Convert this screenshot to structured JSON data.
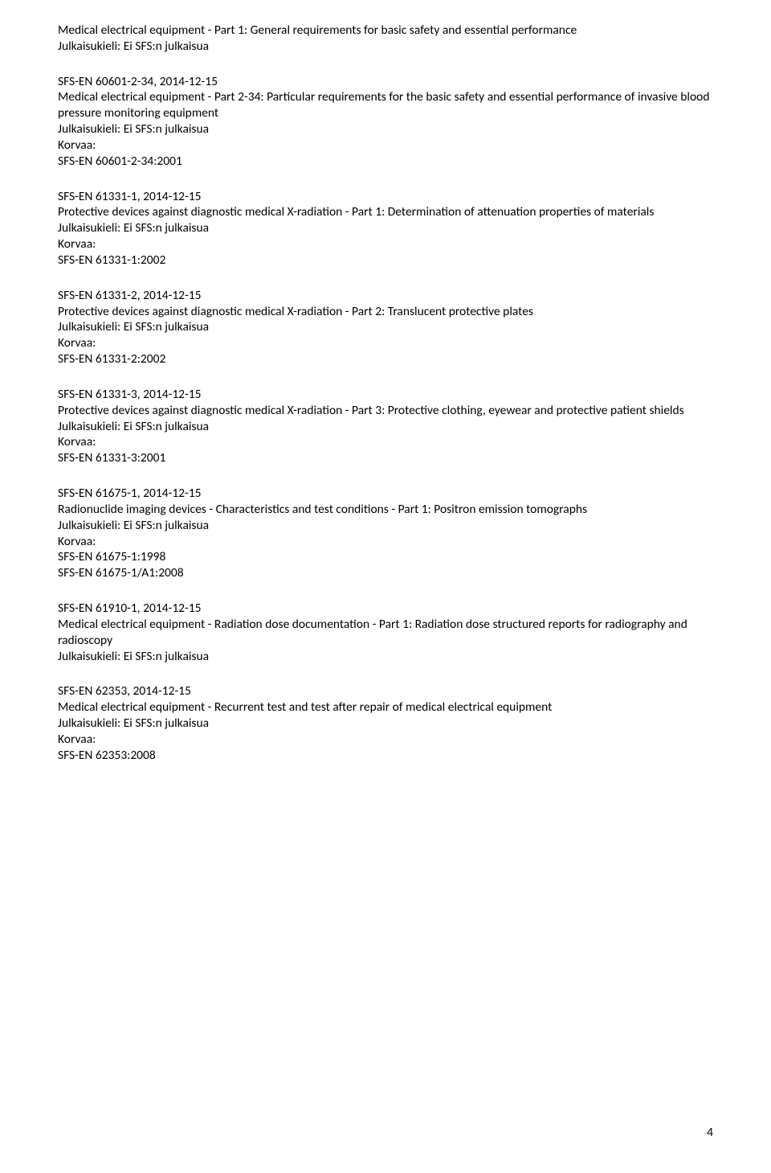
{
  "lang_line": "Julkaisukieli: Ei SFS:n julkaisua",
  "replaces_label": "Korvaa:",
  "page_number": "4",
  "entries": [
    {
      "desc": "Medical electrical equipment - Part 1: General requirements for basic safety and essential performance",
      "show_lang": true
    },
    {
      "header": "SFS-EN 60601-2-34, 2014-12-15",
      "desc": "Medical electrical equipment - Part 2-34: Particular requirements for the basic safety and essential performance of invasive blood pressure monitoring equipment",
      "show_lang": true,
      "show_replaces": true,
      "replaces": [
        "SFS-EN 60601-2-34:2001"
      ]
    },
    {
      "header": "SFS-EN 61331-1, 2014-12-15",
      "desc": "Protective devices against diagnostic medical X-radiation - Part 1: Determination of attenuation properties of materials",
      "show_lang": true,
      "show_replaces": true,
      "replaces": [
        "SFS-EN 61331-1:2002"
      ]
    },
    {
      "header": "SFS-EN 61331-2, 2014-12-15",
      "desc": "Protective devices against diagnostic medical X-radiation - Part 2: Translucent protective plates",
      "show_lang": true,
      "show_replaces": true,
      "replaces": [
        "SFS-EN 61331-2:2002"
      ]
    },
    {
      "header": "SFS-EN 61331-3, 2014-12-15",
      "desc": "Protective devices against diagnostic medical X-radiation - Part 3: Protective clothing, eyewear and protective patient shields",
      "show_lang": true,
      "show_replaces": true,
      "replaces": [
        "SFS-EN 61331-3:2001"
      ]
    },
    {
      "header": "SFS-EN 61675-1, 2014-12-15",
      "desc": "Radionuclide imaging devices - Characteristics and test conditions - Part 1: Positron emission tomographs",
      "show_lang": true,
      "show_replaces": true,
      "replaces": [
        "SFS-EN 61675-1:1998",
        "SFS-EN 61675-1/A1:2008"
      ]
    },
    {
      "header": "SFS-EN 61910-1, 2014-12-15",
      "desc": "Medical electrical equipment - Radiation dose documentation - Part 1: Radiation dose structured reports for radiography and radioscopy",
      "show_lang": true
    },
    {
      "header": "SFS-EN 62353, 2014-12-15",
      "desc": "Medical electrical equipment - Recurrent test and test after repair of medical electrical equipment",
      "show_lang": true,
      "show_replaces": true,
      "replaces": [
        "SFS-EN 62353:2008"
      ]
    }
  ]
}
